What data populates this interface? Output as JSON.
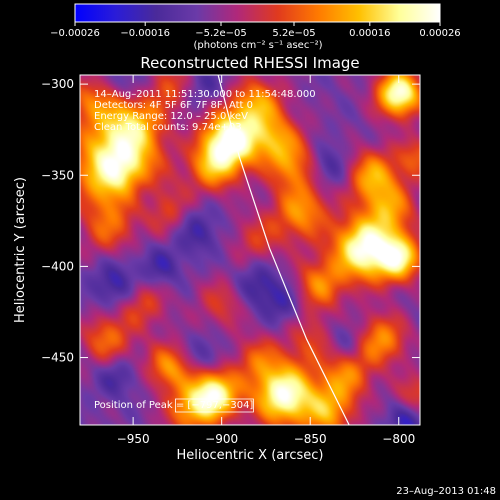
{
  "chart_data": {
    "type": "heatmap",
    "title": "Reconstructed RHESSI Image",
    "xlabel": "Heliocentric X (arcsec)",
    "ylabel": "Heliocentric Y (arcsec)",
    "xlim": [
      -980,
      -788
    ],
    "ylim": [
      -487,
      -295
    ],
    "x_ticks": [
      -950,
      -900,
      -850,
      -800
    ],
    "y_ticks": [
      -300,
      -350,
      -400,
      -450
    ],
    "x_tick_labels": [
      "−950",
      "−900",
      "−850",
      "−800"
    ],
    "y_tick_labels": [
      "−300",
      "−350",
      "−400",
      "−450"
    ],
    "colorbar": {
      "range": [
        -0.00026,
        0.00026
      ],
      "tick_values": [
        -0.00026,
        -0.00016,
        -5.2e-05,
        5.2e-05,
        0.00016,
        0.00026
      ],
      "tick_labels": [
        "−0.00026",
        "−0.00016",
        "−5.2e−05",
        "5.2e−05",
        "0.00016",
        "0.00026"
      ],
      "unit_label": "(photons cm⁻² s⁻¹ asec⁻²)"
    },
    "annotations": {
      "time": "14–Aug–2011 11:51:30.000 to 11:54:48.000",
      "detectors": "Detectors: 4F 5F 6F 7F 8F, Att 0",
      "energy": "Energy Range: 12.0 – 25.0 keV",
      "method": "Clean     Total counts: 9.74e+03",
      "peak": "Position of Peak = [−797,−304]"
    },
    "peak_position": [
      -797,
      -304
    ],
    "limb_curve": [
      [
        -902,
        -295
      ],
      [
        -890,
        -340
      ],
      [
        -873,
        -390
      ],
      [
        -852,
        -440
      ],
      [
        -828,
        -487
      ]
    ],
    "bright_sources": [
      {
        "x": -960,
        "y": -345,
        "a": 1.0,
        "s": 16
      },
      {
        "x": -950,
        "y": -320,
        "a": 0.55,
        "s": 12
      },
      {
        "x": -965,
        "y": -380,
        "a": 0.35,
        "s": 10
      },
      {
        "x": -895,
        "y": -330,
        "a": 1.0,
        "s": 11
      },
      {
        "x": -905,
        "y": -345,
        "a": 0.55,
        "s": 10
      },
      {
        "x": -880,
        "y": -310,
        "a": 0.55,
        "s": 10
      },
      {
        "x": -870,
        "y": -330,
        "a": 0.5,
        "s": 10
      },
      {
        "x": -860,
        "y": -345,
        "a": 0.45,
        "s": 10
      },
      {
        "x": -855,
        "y": -370,
        "a": 0.55,
        "s": 11
      },
      {
        "x": -880,
        "y": -385,
        "a": 0.3,
        "s": 10
      },
      {
        "x": -800,
        "y": -305,
        "a": 1.0,
        "s": 9
      },
      {
        "x": -815,
        "y": -350,
        "a": 0.6,
        "s": 10
      },
      {
        "x": -805,
        "y": -368,
        "a": 0.5,
        "s": 10
      },
      {
        "x": -820,
        "y": -390,
        "a": 1.0,
        "s": 12
      },
      {
        "x": -800,
        "y": -395,
        "a": 0.8,
        "s": 9
      },
      {
        "x": -845,
        "y": -410,
        "a": 0.5,
        "s": 10
      },
      {
        "x": -810,
        "y": -440,
        "a": 0.55,
        "s": 10
      },
      {
        "x": -830,
        "y": -460,
        "a": 0.5,
        "s": 10
      },
      {
        "x": -865,
        "y": -470,
        "a": 1.0,
        "s": 12
      },
      {
        "x": -840,
        "y": -480,
        "a": 0.55,
        "s": 10
      },
      {
        "x": -905,
        "y": -470,
        "a": 1.0,
        "s": 10
      },
      {
        "x": -920,
        "y": -480,
        "a": 0.45,
        "s": 9
      },
      {
        "x": -930,
        "y": -455,
        "a": 0.55,
        "s": 9
      },
      {
        "x": -965,
        "y": -440,
        "a": 0.45,
        "s": 10
      },
      {
        "x": -945,
        "y": -420,
        "a": 0.35,
        "s": 10
      },
      {
        "x": -900,
        "y": -420,
        "a": 0.3,
        "s": 10
      },
      {
        "x": -850,
        "y": -440,
        "a": 0.3,
        "s": 10
      },
      {
        "x": -880,
        "y": -450,
        "a": 0.35,
        "s": 9
      },
      {
        "x": -975,
        "y": -310,
        "a": 0.4,
        "s": 10
      },
      {
        "x": -930,
        "y": -370,
        "a": 0.3,
        "s": 10
      },
      {
        "x": -790,
        "y": -470,
        "a": 0.35,
        "s": 8
      },
      {
        "x": -930,
        "y": -300,
        "a": 0.35,
        "s": 9
      },
      {
        "x": -790,
        "y": -340,
        "a": 0.4,
        "s": 8
      }
    ],
    "dark_sources": [
      {
        "x": -960,
        "y": -410,
        "a": 0.7,
        "s": 9
      },
      {
        "x": -935,
        "y": -400,
        "a": 0.55,
        "s": 8
      },
      {
        "x": -915,
        "y": -380,
        "a": 0.6,
        "s": 9
      },
      {
        "x": -950,
        "y": -300,
        "a": 0.5,
        "s": 8
      },
      {
        "x": -880,
        "y": -410,
        "a": 0.6,
        "s": 9
      },
      {
        "x": -865,
        "y": -420,
        "a": 0.5,
        "s": 8
      },
      {
        "x": -840,
        "y": -345,
        "a": 0.55,
        "s": 8
      },
      {
        "x": -830,
        "y": -440,
        "a": 0.45,
        "s": 8
      },
      {
        "x": -910,
        "y": -450,
        "a": 0.5,
        "s": 8
      },
      {
        "x": -960,
        "y": -460,
        "a": 0.5,
        "s": 8
      },
      {
        "x": -795,
        "y": -485,
        "a": 0.7,
        "s": 7
      },
      {
        "x": -910,
        "y": -300,
        "a": 0.4,
        "s": 8
      },
      {
        "x": -945,
        "y": -360,
        "a": 0.5,
        "s": 8
      }
    ]
  },
  "footer": {
    "timestamp": "23–Aug–2013 01:48"
  },
  "colors": {
    "background": "#000000",
    "foreground": "#ffffff",
    "colormap": [
      "#0000ff",
      "#2a1cd8",
      "#4a2a9a",
      "#6a3aa8",
      "#b0287a",
      "#e03a1e",
      "#ff7a00",
      "#ffc000",
      "#ffff9a",
      "#ffffff"
    ]
  }
}
